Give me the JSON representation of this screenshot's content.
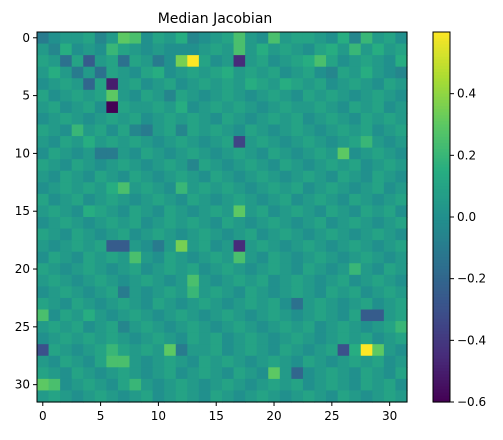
{
  "chart_data": {
    "type": "heatmap",
    "title": "Median Jacobian",
    "rows": 32,
    "cols": 32,
    "xticks": [
      0,
      5,
      10,
      15,
      20,
      25,
      30
    ],
    "yticks": [
      0,
      5,
      10,
      15,
      20,
      25,
      30
    ],
    "colorbar": {
      "min": -0.6,
      "max": 0.6,
      "ticks": [
        0.4,
        0.2,
        0.0,
        -0.2,
        -0.4,
        -0.6
      ],
      "tick_labels": [
        "0.4",
        "0.2",
        "0.0",
        "−0.2",
        "−0.4",
        "−0.6"
      ],
      "colormap": "viridis"
    },
    "values": [
      [
        -0.1,
        0,
        0.05,
        0.05,
        0.1,
        -0.05,
        0.05,
        0.3,
        0.25,
        0,
        0.1,
        0.05,
        0.15,
        -0.05,
        0,
        0.05,
        0.1,
        0.25,
        0.05,
        0,
        0.25,
        0.05,
        0.1,
        0.1,
        0.05,
        0,
        0.15,
        -0.05,
        0.2,
        0.05,
        0.1,
        0
      ],
      [
        0.05,
        -0.05,
        0.15,
        0,
        0.05,
        0,
        0.2,
        0.1,
        0.05,
        0,
        0.05,
        0,
        0,
        0,
        0.05,
        0.1,
        0.05,
        0.25,
        0.05,
        0.15,
        0.05,
        0.1,
        0.05,
        0,
        0.1,
        0.15,
        0.05,
        0.2,
        0.05,
        0.15,
        0.05,
        0.1
      ],
      [
        0.1,
        0.05,
        -0.15,
        0.1,
        -0.25,
        0.05,
        0.1,
        -0.15,
        0.1,
        0.05,
        -0.1,
        0,
        0.35,
        0.6,
        0.1,
        0,
        0.05,
        -0.45,
        0.05,
        0.1,
        0,
        0.05,
        0.1,
        0.15,
        0.25,
        0.1,
        0,
        0.05,
        0.1,
        0.05,
        0,
        0.15
      ],
      [
        0.05,
        0.15,
        0.05,
        -0.1,
        0.05,
        -0.15,
        0.1,
        0.05,
        0,
        0.1,
        0.15,
        0,
        0.05,
        0.1,
        0.05,
        0.1,
        0.15,
        0.05,
        0.1,
        0.05,
        0.1,
        0,
        0.05,
        0.1,
        0,
        -0.05,
        0.1,
        0.05,
        0.15,
        0.05,
        0,
        -0.05
      ],
      [
        0,
        0.05,
        0.1,
        0.05,
        -0.2,
        0.1,
        -0.5,
        0.05,
        0.1,
        0,
        0.05,
        0.1,
        0,
        0.05,
        0.1,
        0.05,
        0.1,
        0.05,
        0.15,
        0.1,
        0.05,
        0.15,
        0.1,
        0.05,
        0.1,
        0,
        0.05,
        0.1,
        0.05,
        0,
        0.1,
        0.05
      ],
      [
        0.1,
        0,
        0.05,
        0.1,
        0.05,
        0.1,
        0.3,
        0.05,
        0,
        0.1,
        0.05,
        -0.05,
        0.1,
        0.05,
        0,
        0.05,
        0.1,
        0.05,
        0,
        0.05,
        0.1,
        0.05,
        0,
        0.1,
        0.05,
        0.1,
        0.05,
        0,
        0.05,
        0.1,
        0.05,
        0
      ],
      [
        0.05,
        0.1,
        0,
        0.05,
        0.1,
        0,
        -0.6,
        0.1,
        0.05,
        0.05,
        0.1,
        0.05,
        0.15,
        0,
        0.05,
        0.1,
        0.05,
        0.1,
        0.05,
        0,
        0.05,
        0.1,
        0.05,
        0.05,
        0.1,
        0.05,
        0,
        0.1,
        0.05,
        0.1,
        0,
        0.05
      ],
      [
        0,
        0.05,
        0.1,
        0.05,
        0,
        0.05,
        0.1,
        0.05,
        0.1,
        0,
        0.05,
        0.1,
        0.05,
        0.1,
        0.05,
        0,
        0.1,
        0.05,
        0,
        0.05,
        0.1,
        0.05,
        0.1,
        0,
        0.05,
        0.1,
        0.05,
        0,
        0.1,
        0.05,
        0.1,
        0.05
      ],
      [
        0.1,
        0.05,
        0,
        0.2,
        0.05,
        0.1,
        0,
        0.1,
        -0.05,
        -0.1,
        0.05,
        0.1,
        -0.05,
        0.1,
        0.05,
        0.1,
        0.05,
        0,
        0.1,
        0.05,
        0,
        0.05,
        0.1,
        0.05,
        0,
        0.05,
        0.1,
        0.05,
        0.1,
        0,
        0.05,
        0.1
      ],
      [
        0.05,
        0,
        0.1,
        0.05,
        0.15,
        0.05,
        0.1,
        0.05,
        0.1,
        0.05,
        0,
        0.05,
        0.1,
        0.05,
        0,
        0.05,
        0.1,
        -0.35,
        0.05,
        0.1,
        0.05,
        0,
        0.05,
        0.1,
        0.05,
        0,
        0.05,
        0.1,
        0.2,
        0.05,
        0,
        0.05
      ],
      [
        0,
        0.1,
        0.05,
        0,
        0.05,
        -0.1,
        -0.1,
        0.05,
        0,
        0.1,
        0.05,
        0,
        0.05,
        0.1,
        0.05,
        0,
        0.05,
        0.1,
        0.05,
        0,
        0.1,
        0.05,
        0,
        0.05,
        0.1,
        0.05,
        0.3,
        0,
        0.05,
        0.1,
        0.05,
        0
      ],
      [
        0.1,
        0.05,
        0,
        0.1,
        0.05,
        0,
        0.05,
        0.1,
        0.05,
        0,
        0.05,
        0.1,
        0.05,
        -0.05,
        0.1,
        0.05,
        0,
        0.05,
        0.1,
        0.05,
        0,
        0.1,
        0.05,
        0,
        0.05,
        0.1,
        0.05,
        0.1,
        0,
        0.05,
        0.1,
        0.05
      ],
      [
        0.05,
        0,
        0.1,
        0.05,
        0,
        0.1,
        0.05,
        0,
        0.1,
        0.05,
        0,
        0.05,
        0.1,
        0.05,
        0,
        0.1,
        0.05,
        0,
        0.05,
        0.1,
        0.05,
        0,
        0.05,
        0.1,
        0.05,
        0,
        0.1,
        0.05,
        0,
        0.1,
        0.05,
        0
      ],
      [
        0,
        0.05,
        0.1,
        0.05,
        0.1,
        0.05,
        0.15,
        0.25,
        0.05,
        0.1,
        0.05,
        0,
        0.2,
        0.05,
        0.1,
        0.05,
        0.1,
        0.05,
        0,
        0.05,
        0.1,
        0.05,
        0.1,
        0,
        0.05,
        0.1,
        0.05,
        0,
        0.05,
        0.1,
        0,
        0.05
      ],
      [
        0.1,
        0,
        0.05,
        0.1,
        0,
        0.05,
        0.1,
        0.05,
        0,
        0.05,
        0.1,
        0.05,
        0,
        0.1,
        0.05,
        0,
        0.05,
        0.1,
        0.05,
        0,
        0.05,
        0.1,
        0,
        0.05,
        0.1,
        0.05,
        0,
        0.1,
        0.05,
        0,
        0.05,
        0.1
      ],
      [
        0.05,
        0.1,
        0.05,
        0,
        0.15,
        0.1,
        0.05,
        0,
        0.1,
        0.05,
        0,
        0.1,
        0.05,
        0,
        0.05,
        0.1,
        0.05,
        0.3,
        0.05,
        0.1,
        0,
        0.05,
        0.1,
        0.05,
        0,
        0.1,
        0.05,
        0,
        0.1,
        0.05,
        0.1,
        0
      ],
      [
        0,
        0.05,
        0.1,
        0.05,
        0,
        0.05,
        0.1,
        0.05,
        0.1,
        0,
        0.05,
        0.1,
        0.05,
        0.1,
        0.05,
        0,
        0.1,
        0.05,
        0,
        0.05,
        0.1,
        0.05,
        0,
        0.05,
        0.1,
        0,
        0.05,
        0.1,
        0.05,
        0,
        0.05,
        0.1
      ],
      [
        0.1,
        0.05,
        0,
        0.1,
        0.05,
        0,
        0.05,
        0.1,
        0,
        0.05,
        0.1,
        0.05,
        0,
        0.05,
        0.1,
        0.05,
        0,
        0.05,
        0.1,
        0,
        0.05,
        0.1,
        0.05,
        0,
        0.05,
        0.1,
        0.05,
        0,
        0.05,
        0.1,
        0.05,
        0
      ],
      [
        0.05,
        0,
        0.05,
        0.1,
        0.05,
        0.1,
        -0.25,
        -0.25,
        0.05,
        0,
        -0.1,
        0.05,
        0.35,
        0.05,
        0.1,
        0,
        0.05,
        -0.45,
        0.05,
        0.1,
        0.05,
        0,
        0.05,
        0.1,
        0.05,
        0,
        0.05,
        0.1,
        0.05,
        0,
        0.05,
        0.1
      ],
      [
        0,
        0.1,
        0.05,
        0,
        0.1,
        0.05,
        0.1,
        0.05,
        0.25,
        0.05,
        0,
        0.1,
        0.05,
        0,
        0.05,
        0.1,
        0.05,
        0.25,
        0.05,
        0,
        0.1,
        0.05,
        0,
        0.05,
        0.1,
        0.05,
        0,
        0.05,
        0.1,
        0.05,
        0,
        0.05
      ],
      [
        0.1,
        0.05,
        0,
        0.05,
        0.1,
        0.05,
        0,
        0.05,
        0.1,
        0,
        0.05,
        0.1,
        0.05,
        0.1,
        0,
        0.05,
        0.1,
        0.05,
        0,
        0.05,
        0.1,
        0.05,
        0,
        0.1,
        0.05,
        0,
        0.05,
        0.2,
        0.05,
        0,
        0.1,
        0.05
      ],
      [
        0.05,
        0.1,
        0.05,
        0,
        0.05,
        0.1,
        0.05,
        0,
        0.05,
        0.1,
        0.05,
        0,
        0.05,
        0.25,
        0.05,
        0,
        0.05,
        0.1,
        0.05,
        0.1,
        0,
        0.05,
        0.1,
        0.05,
        0,
        0.05,
        0.1,
        0,
        0.05,
        0.1,
        0.05,
        0
      ],
      [
        0,
        0.05,
        0.1,
        0.05,
        0,
        0.05,
        0.1,
        -0.1,
        0.05,
        0,
        0.05,
        0.1,
        0.05,
        0.2,
        0.05,
        0.1,
        0.05,
        0,
        0.1,
        0.05,
        0,
        0.05,
        0.1,
        0.05,
        0,
        0.1,
        0.05,
        0.1,
        0,
        0.05,
        0.1,
        0.05
      ],
      [
        0.1,
        0.05,
        0,
        0.1,
        0.05,
        0,
        0.05,
        0.1,
        0.05,
        0,
        0.1,
        0.05,
        0,
        0.05,
        0.1,
        0.05,
        0,
        0.05,
        0.1,
        0.05,
        0.1,
        0,
        -0.15,
        0.05,
        0.1,
        0.05,
        0,
        0.05,
        0.1,
        0,
        0.05,
        0.1
      ],
      [
        0.25,
        0,
        0.1,
        0.05,
        0.15,
        0.05,
        0,
        0.05,
        0.1,
        0.05,
        0,
        0.05,
        0.1,
        0.05,
        0,
        0.05,
        0.1,
        0.05,
        0,
        0.05,
        0.1,
        0.05,
        0,
        0.05,
        0.1,
        0.05,
        0,
        0.1,
        -0.25,
        -0.25,
        0.05,
        0.1
      ],
      [
        0.05,
        0.1,
        0.05,
        0.1,
        0,
        0.05,
        0.1,
        -0.05,
        0.05,
        0.1,
        0.05,
        0,
        0.05,
        0.1,
        0.05,
        0,
        0.05,
        0.1,
        0.05,
        0,
        0.05,
        0.1,
        0.05,
        0.1,
        0,
        0.05,
        0.1,
        0.05,
        0,
        0.05,
        0.1,
        0.2
      ],
      [
        0,
        0.05,
        0.1,
        0.05,
        0.1,
        0.05,
        0.1,
        0.05,
        0,
        0.05,
        0.1,
        0.05,
        0,
        0.1,
        0.05,
        0.1,
        0,
        0.05,
        0.1,
        0.05,
        0,
        0.05,
        0.1,
        0.05,
        0,
        0.05,
        0.1,
        0.05,
        0.1,
        0,
        0.05,
        0.1
      ],
      [
        -0.3,
        0.1,
        0.05,
        0,
        0.05,
        0.1,
        0.2,
        0.1,
        0.05,
        0.1,
        0.05,
        0.3,
        -0.1,
        0.05,
        0.05,
        0.1,
        0,
        0.05,
        0.1,
        0.05,
        0,
        0.1,
        0.05,
        0,
        0.05,
        0.1,
        -0.3,
        0.15,
        0.6,
        0.3,
        0.05,
        0
      ],
      [
        0.05,
        0,
        0.1,
        0.05,
        0,
        0.1,
        0.25,
        0.25,
        0.05,
        0,
        0.05,
        0.1,
        0.05,
        0,
        0.1,
        0.05,
        0.1,
        0.05,
        0,
        0.05,
        0.1,
        0.05,
        0,
        0.1,
        0.05,
        0,
        0.05,
        0.1,
        0.05,
        0.1,
        0,
        0.05
      ],
      [
        0.1,
        0.05,
        0,
        0.1,
        0.05,
        0,
        0.05,
        0.1,
        0.05,
        0,
        0.05,
        0.1,
        0,
        0.05,
        0.1,
        0.05,
        0,
        0.1,
        0.05,
        0,
        0.3,
        0.05,
        -0.2,
        0,
        0.05,
        0.1,
        0.05,
        0,
        0.1,
        0.05,
        0,
        0.1
      ],
      [
        0.3,
        0.25,
        0,
        0.05,
        0.1,
        0.05,
        0,
        0.1,
        0.2,
        0.05,
        0,
        0.05,
        0.1,
        0.05,
        0,
        0.05,
        0.1,
        0.05,
        0,
        0.05,
        0.1,
        0.05,
        0.1,
        0,
        0.05,
        0.1,
        0.05,
        0,
        0.1,
        0.05,
        0.1,
        0
      ],
      [
        0.05,
        0.1,
        0.05,
        0,
        0.05,
        0.1,
        0.05,
        0,
        0.05,
        0.1,
        0,
        0.05,
        0.1,
        0.05,
        0,
        0.1,
        0.05,
        0,
        0.05,
        0.1,
        0.05,
        0,
        0.05,
        0.1,
        0.05,
        0,
        0.1,
        0.05,
        0,
        0.05,
        0.1,
        0.05
      ]
    ]
  }
}
